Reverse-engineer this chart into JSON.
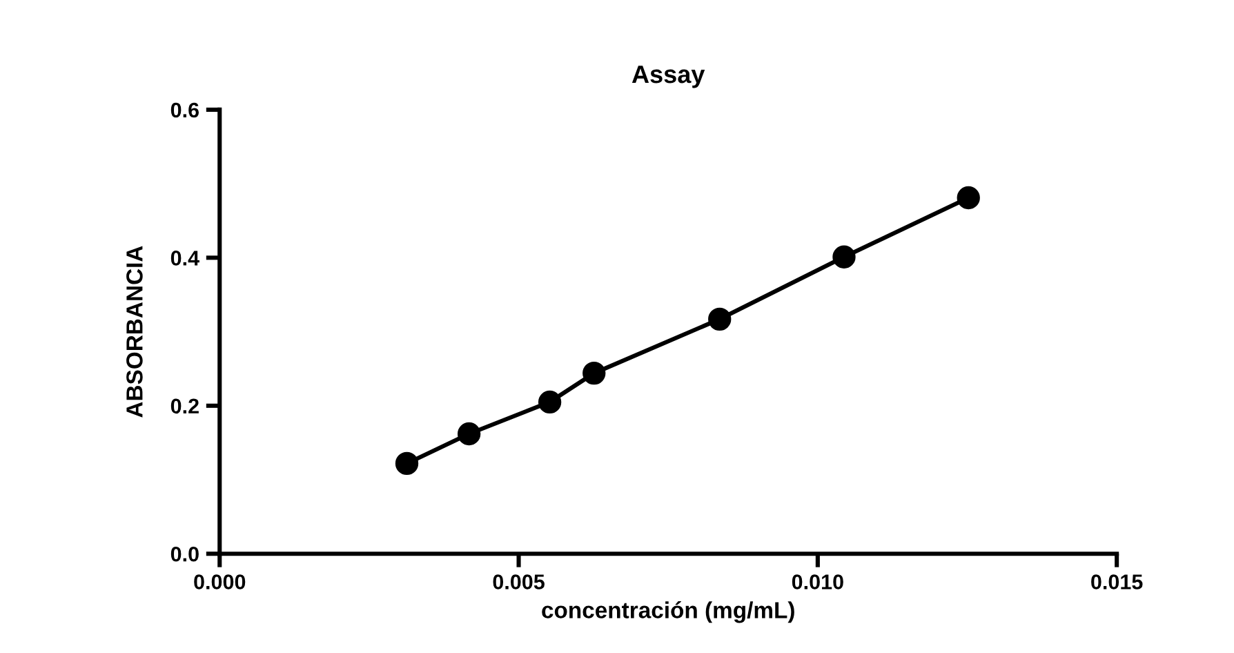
{
  "chart_data": {
    "type": "line",
    "title": "Assay",
    "xlabel": "concentración (mg/mL)",
    "ylabel": "ABSORBANCIA",
    "x": [
      0.00313,
      0.00417,
      0.00552,
      0.00626,
      0.00836,
      0.01044,
      0.01252
    ],
    "series": [
      {
        "color": "#000000",
        "values": [
          0.122,
          0.162,
          0.205,
          0.244,
          0.317,
          0.401,
          0.481
        ]
      }
    ],
    "xlim": [
      0,
      0.015
    ],
    "ylim": [
      0,
      0.6
    ],
    "xticks": [
      {
        "value": 0,
        "label": "0.000"
      },
      {
        "value": 0.005,
        "label": "0.005"
      },
      {
        "value": 0.01,
        "label": "0.010"
      },
      {
        "value": 0.015,
        "label": "0.015"
      }
    ],
    "yticks": [
      {
        "value": 0,
        "label": "0.0"
      },
      {
        "value": 0.2,
        "label": "0.2"
      },
      {
        "value": 0.4,
        "label": "0.4"
      },
      {
        "value": 0.6,
        "label": "0.6"
      }
    ],
    "marker": "circle",
    "line_style": "solid",
    "grid": false,
    "legend": false
  }
}
